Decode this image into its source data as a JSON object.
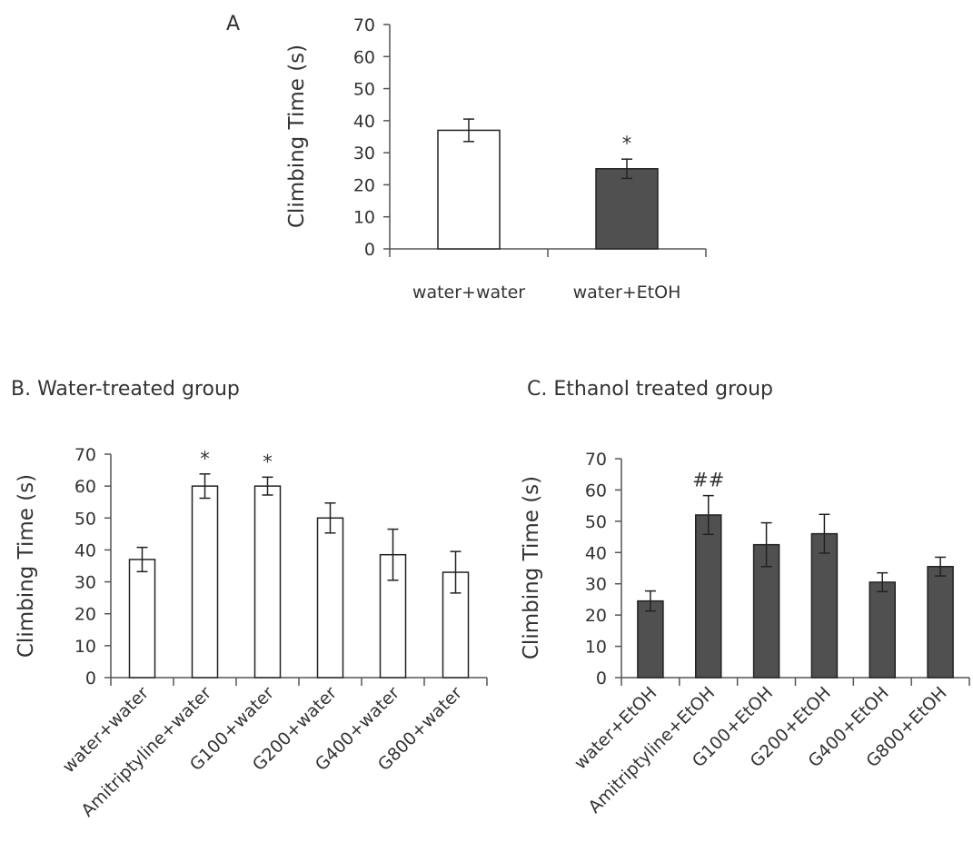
{
  "panels": {
    "a_label": "A",
    "b_label": "B. Water-treated group",
    "c_label": "C. Ethanol treated group"
  },
  "colors": {
    "white_bar": "#ffffff",
    "dark_bar": "#505050",
    "axis": "#555555"
  },
  "chart_data": [
    {
      "type": "bar",
      "title": "A",
      "ylabel": "Climbing Time (s)",
      "ylim": [
        0,
        70
      ],
      "yticks": [
        0,
        10,
        20,
        30,
        40,
        50,
        60,
        70
      ],
      "categories": [
        "water+water",
        "water+EtOH"
      ],
      "values": [
        37,
        25
      ],
      "errors": [
        3.5,
        3
      ],
      "annotations": [
        "",
        "*"
      ],
      "bar_colors": [
        "#ffffff",
        "#505050"
      ]
    },
    {
      "type": "bar",
      "title": "B. Water-treated group",
      "ylabel": "Climbing Time (s)",
      "ylim": [
        0,
        70
      ],
      "yticks": [
        0,
        10,
        20,
        30,
        40,
        50,
        60,
        70
      ],
      "categories": [
        "water+water",
        "Amitriptyline+water",
        "G100+water",
        "G200+water",
        "G400+water",
        "G800+water"
      ],
      "values": [
        37,
        60,
        60,
        50,
        38.5,
        33
      ],
      "errors": [
        3.8,
        3.8,
        2.8,
        4.7,
        8,
        6.5
      ],
      "annotations": [
        "",
        "*",
        "*",
        "",
        "",
        ""
      ],
      "bar_colors": [
        "#ffffff",
        "#ffffff",
        "#ffffff",
        "#ffffff",
        "#ffffff",
        "#ffffff"
      ]
    },
    {
      "type": "bar",
      "title": "C. Ethanol treated group",
      "ylabel": "Climbing Time (s)",
      "ylim": [
        0,
        70
      ],
      "yticks": [
        0,
        10,
        20,
        30,
        40,
        50,
        60,
        70
      ],
      "categories": [
        "water+EtOH",
        "Amitriptyline+EtOH",
        "G100+EtOH",
        "G200+EtOH",
        "G400+EtOH",
        "G800+EtOH"
      ],
      "values": [
        24.5,
        52,
        42.5,
        46,
        30.5,
        35.5
      ],
      "errors": [
        3.2,
        6.2,
        7,
        6.2,
        3,
        3
      ],
      "annotations": [
        "",
        "##",
        "",
        "",
        "",
        ""
      ],
      "bar_colors": [
        "#505050",
        "#505050",
        "#505050",
        "#505050",
        "#505050",
        "#505050"
      ]
    }
  ]
}
